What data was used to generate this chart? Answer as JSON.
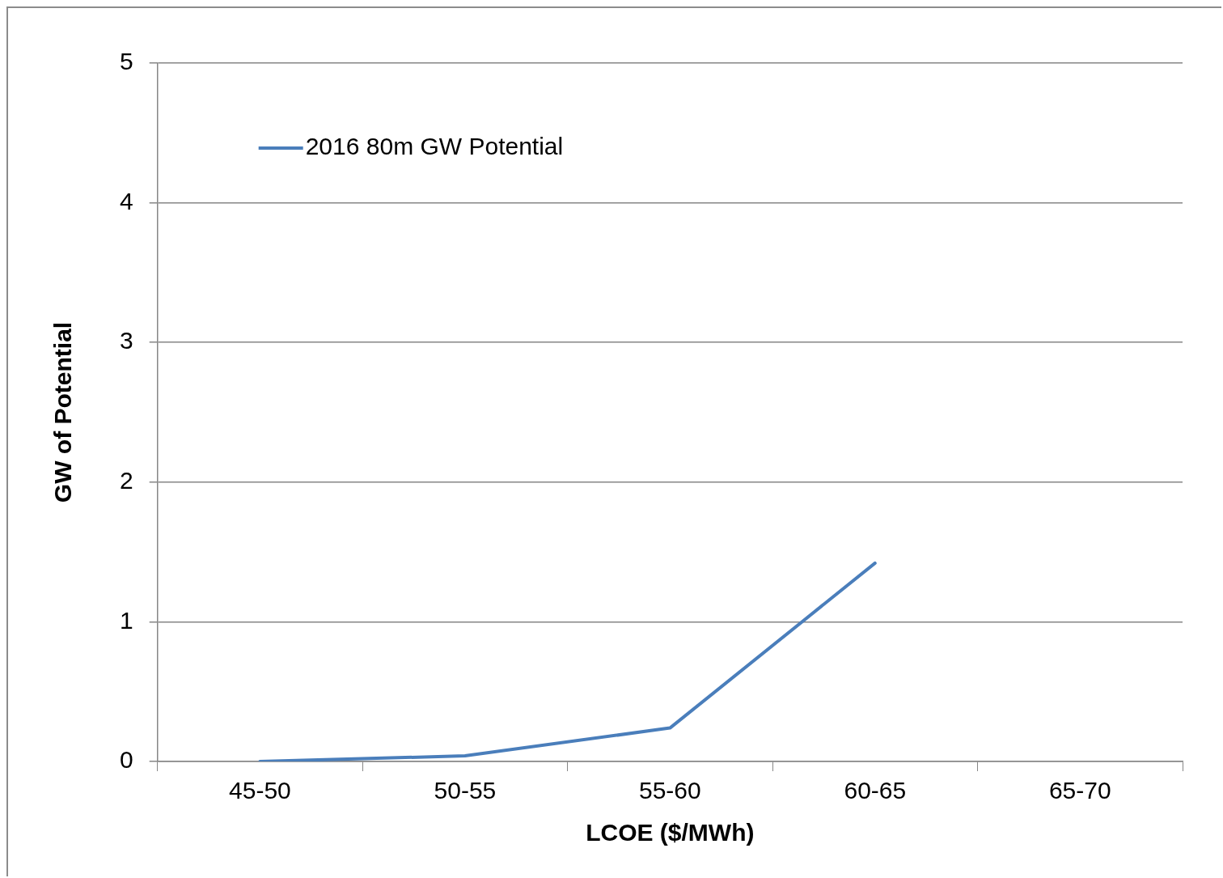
{
  "chart_data": {
    "type": "line",
    "xlabel": "LCOE ($/MWh)",
    "ylabel": "GW of Potential",
    "categories": [
      "45-50",
      "50-55",
      "55-60",
      "60-65",
      "65-70"
    ],
    "series": [
      {
        "name": "2016 80m GW Potential",
        "color": "#4a7ebb",
        "values": [
          0.0,
          0.04,
          0.24,
          1.42,
          null
        ]
      }
    ],
    "ylim": [
      0,
      5
    ],
    "yticks": [
      0,
      1,
      2,
      3,
      4,
      5
    ],
    "grid": "y",
    "legend": "top left",
    "marker": "none",
    "line_style": "solid"
  }
}
